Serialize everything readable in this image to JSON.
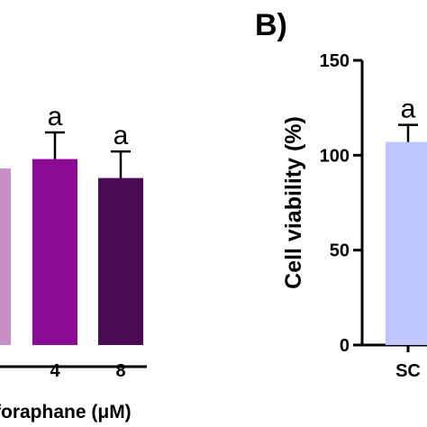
{
  "chart_data": [
    {
      "panel": "",
      "type": "bar",
      "categories": [
        "",
        "4",
        "8"
      ],
      "values": [
        93,
        98,
        88
      ],
      "errors": [
        0,
        14,
        14
      ],
      "significance": [
        "",
        "a",
        "a"
      ],
      "colors": [
        "#c88ec8",
        "#8b0a96",
        "#4b0a55"
      ],
      "xlabel": "foraphane (μM)",
      "ylim": [
        0,
        150
      ]
    },
    {
      "panel": "B)",
      "type": "bar",
      "categories": [
        "SC"
      ],
      "values": [
        107
      ],
      "errors": [
        9
      ],
      "significance": [
        "a"
      ],
      "colors": [
        "#c0c4ff"
      ],
      "ylabel": "Cell viability (%)",
      "ylim": [
        0,
        150
      ],
      "yticks": [
        "0",
        "50",
        "100",
        "150"
      ]
    }
  ]
}
